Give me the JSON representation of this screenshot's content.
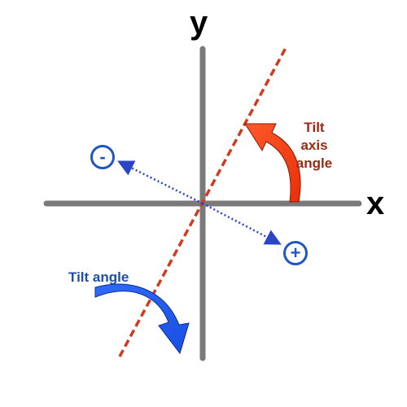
{
  "axes": {
    "y_label": "y",
    "x_label": "x"
  },
  "tilt_axis": {
    "label_lines": [
      "Tilt",
      "axis",
      "angle"
    ],
    "color": "#c0392b"
  },
  "tilt_angle": {
    "label": "Tilt angle",
    "color": "#1f56c2"
  },
  "rotation_signs": {
    "negative": "-",
    "positive": "+"
  },
  "colors": {
    "axis_gray": "#7a7a7a",
    "tilt_axis_line": "#d03a1e",
    "axis_arrow": "#ff3b0f",
    "tilt_arrow": "#1f5bea",
    "direction_dots": "#2a45c8"
  }
}
